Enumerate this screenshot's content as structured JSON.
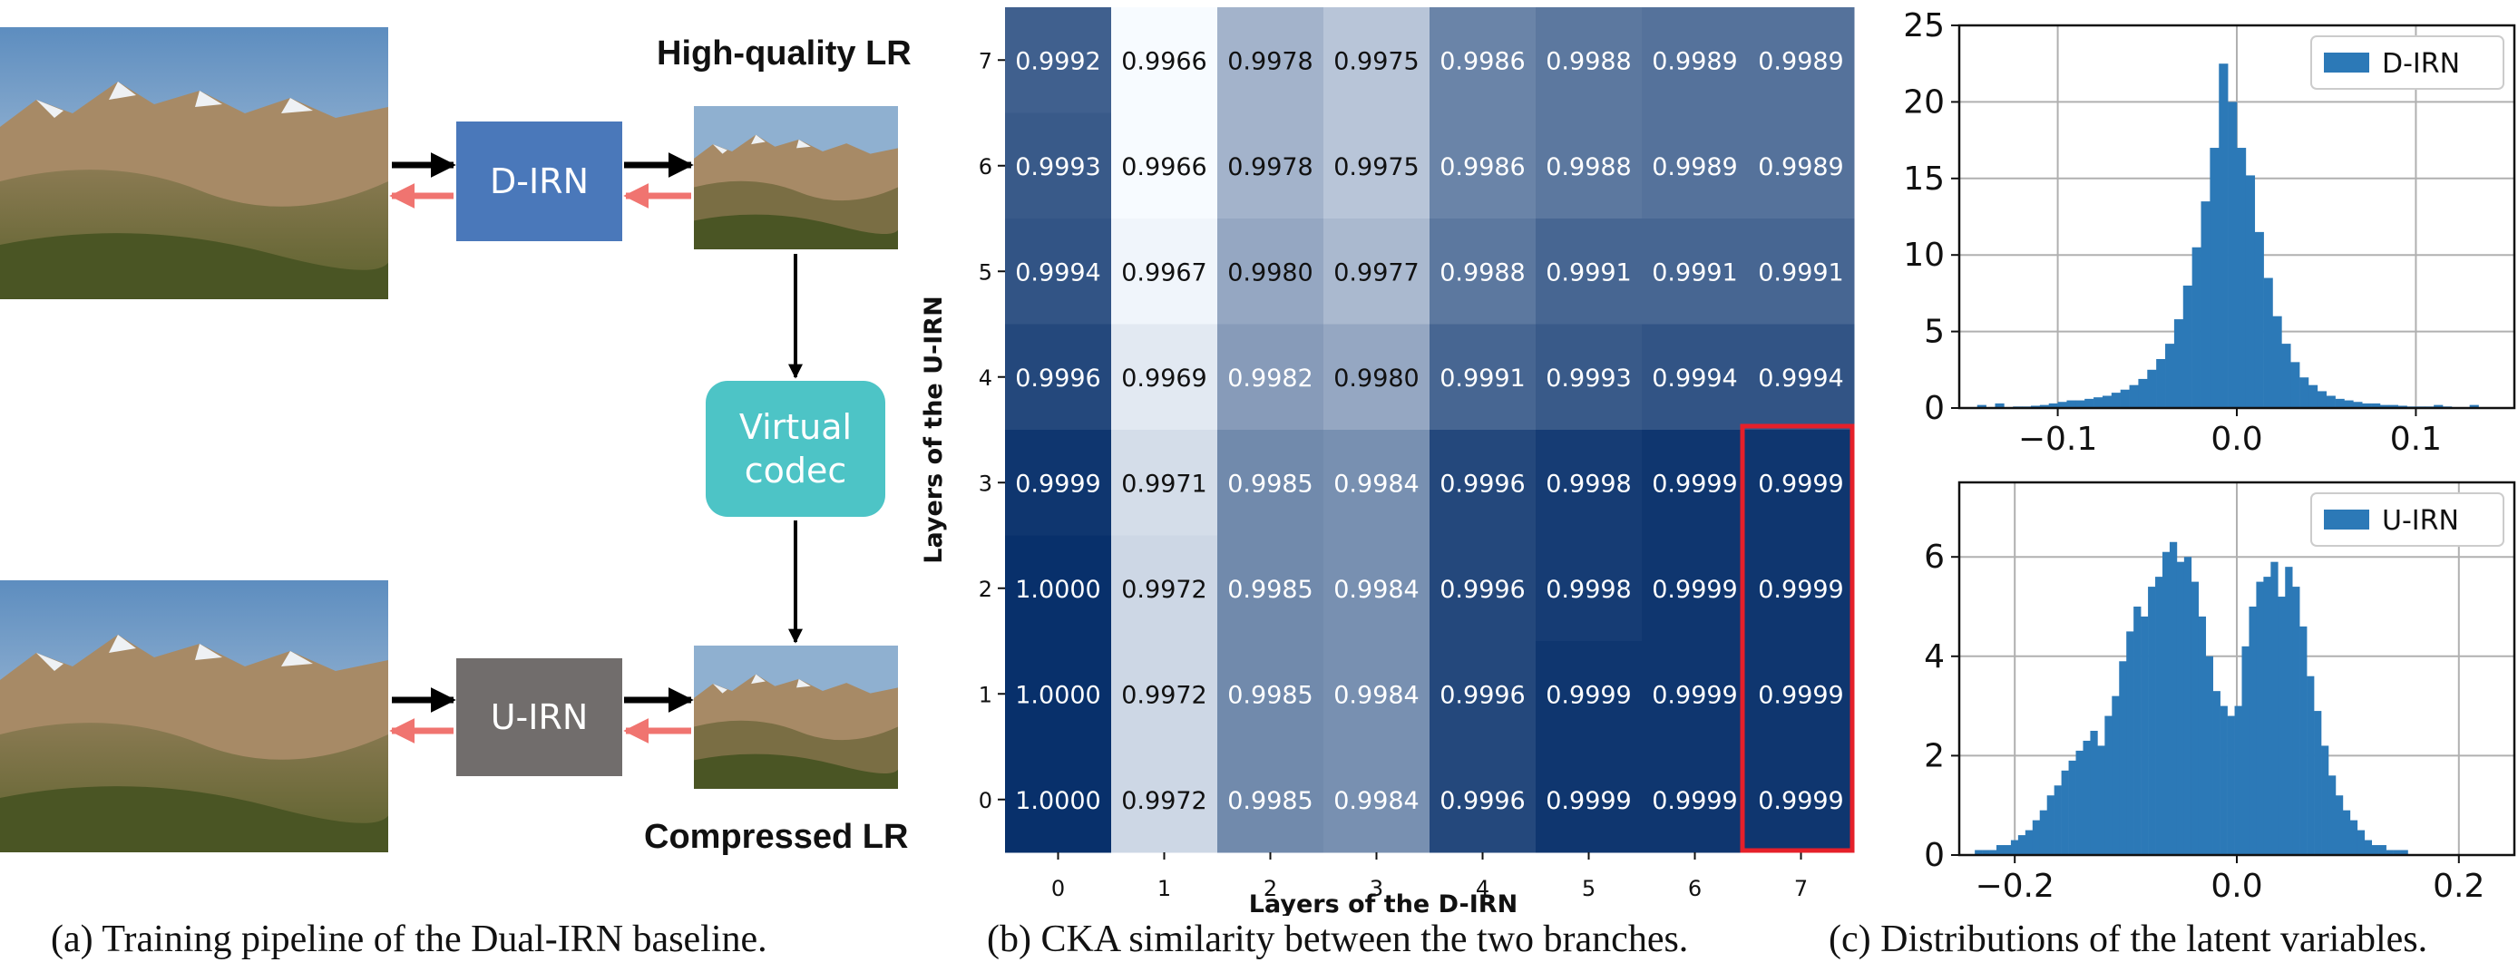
{
  "pipeline": {
    "high_quality_label": "High-quality LR",
    "compressed_label": "Compressed LR",
    "d_irn_label": "D-IRN",
    "u_irn_label": "U-IRN",
    "codec_label_line1": "Virtual",
    "codec_label_line2": "codec",
    "colors": {
      "d_irn_box": "#4a78ba",
      "u_irn_box": "#716d6c",
      "codec_box": "#4dc4c6",
      "forward_arrow": "#000000",
      "backward_arrow": "#f07470"
    }
  },
  "captions": {
    "a": "(a) Training pipeline of the Dual-IRN baseline.",
    "b": "(b) CKA similarity between the two branches.",
    "c": "(c) Distributions of the latent variables."
  },
  "chart_data": [
    {
      "type": "heatmap",
      "xlabel": "Layers of the D-IRN",
      "ylabel": "Layers of the U-IRN",
      "x_ticks": [
        "0",
        "1",
        "2",
        "3",
        "4",
        "5",
        "6",
        "7"
      ],
      "y_ticks": [
        "7",
        "6",
        "5",
        "4",
        "3",
        "2",
        "1",
        "0"
      ],
      "values": [
        [
          "0.9992",
          "0.9966",
          "0.9978",
          "0.9975",
          "0.9986",
          "0.9988",
          "0.9989",
          "0.9989"
        ],
        [
          "0.9993",
          "0.9966",
          "0.9978",
          "0.9975",
          "0.9986",
          "0.9988",
          "0.9989",
          "0.9989"
        ],
        [
          "0.9994",
          "0.9967",
          "0.9980",
          "0.9977",
          "0.9988",
          "0.9991",
          "0.9991",
          "0.9991"
        ],
        [
          "0.9996",
          "0.9969",
          "0.9982",
          "0.9980",
          "0.9991",
          "0.9993",
          "0.9994",
          "0.9994"
        ],
        [
          "0.9999",
          "0.9971",
          "0.9985",
          "0.9984",
          "0.9996",
          "0.9998",
          "0.9999",
          "0.9999"
        ],
        [
          "1.0000",
          "0.9972",
          "0.9985",
          "0.9984",
          "0.9996",
          "0.9998",
          "0.9999",
          "0.9999"
        ],
        [
          "1.0000",
          "0.9972",
          "0.9985",
          "0.9984",
          "0.9996",
          "0.9999",
          "0.9999",
          "0.9999"
        ],
        [
          "1.0000",
          "0.9972",
          "0.9985",
          "0.9984",
          "0.9996",
          "0.9999",
          "0.9999",
          "0.9999"
        ]
      ],
      "highlight": {
        "column": "7",
        "rows": [
          "3",
          "2",
          "1",
          "0"
        ],
        "color": "#e5202a"
      }
    },
    {
      "type": "bar",
      "subtype": "histogram",
      "legend": "D-IRN",
      "legend_position": "top-right",
      "grid": true,
      "color": "#2c79b7",
      "xlim": [
        -0.155,
        0.155
      ],
      "ylim": [
        0,
        25
      ],
      "x_ticks": [
        "−0.1",
        "0.0",
        "0.1"
      ],
      "x_tick_values": [
        -0.1,
        0.0,
        0.1
      ],
      "y_ticks": [
        "0",
        "5",
        "10",
        "15",
        "20",
        "25"
      ],
      "y_tick_values": [
        0,
        5,
        10,
        15,
        20,
        25
      ],
      "bin_start": -0.145,
      "bin_width": 0.005,
      "values": [
        0.2,
        0.05,
        0.3,
        0.05,
        0.1,
        0.1,
        0.15,
        0.2,
        0.3,
        0.4,
        0.5,
        0.5,
        0.6,
        0.7,
        0.8,
        1.0,
        1.2,
        1.5,
        1.9,
        2.5,
        3.2,
        4.2,
        5.8,
        8.0,
        10.5,
        13.5,
        17.0,
        22.5,
        20.0,
        17.0,
        15.2,
        11.5,
        8.5,
        6.0,
        4.2,
        3.0,
        2.0,
        1.5,
        1.1,
        0.8,
        0.6,
        0.5,
        0.4,
        0.3,
        0.3,
        0.2,
        0.2,
        0.15,
        0.1,
        0.1,
        0.1,
        0.2,
        0.1,
        0.05,
        0.05,
        0.2
      ]
    },
    {
      "type": "bar",
      "subtype": "histogram",
      "legend": "U-IRN",
      "legend_position": "top-right",
      "grid": true,
      "color": "#2c79b7",
      "xlim": [
        -0.25,
        0.25
      ],
      "ylim": [
        0,
        7.5
      ],
      "x_ticks": [
        "−0.2",
        "0.0",
        "0.2"
      ],
      "x_tick_values": [
        -0.2,
        0.0,
        0.2
      ],
      "y_ticks": [
        "0",
        "2",
        "4",
        "6"
      ],
      "y_tick_values": [
        0,
        2,
        4,
        6
      ],
      "bin_start": -0.236,
      "bin_width": 0.0065,
      "values": [
        0.1,
        0.1,
        0.1,
        0.2,
        0.2,
        0.3,
        0.4,
        0.5,
        0.7,
        0.9,
        1.2,
        1.4,
        1.7,
        1.9,
        2.1,
        2.3,
        2.5,
        2.2,
        2.8,
        3.2,
        3.9,
        4.5,
        5.0,
        4.8,
        5.4,
        5.6,
        6.1,
        6.3,
        5.9,
        6.0,
        5.5,
        4.8,
        4.0,
        3.3,
        3.0,
        2.8,
        3.0,
        4.2,
        5.0,
        5.5,
        5.6,
        5.9,
        5.2,
        5.8,
        5.4,
        4.6,
        3.6,
        2.9,
        2.2,
        1.6,
        1.2,
        0.9,
        0.7,
        0.5,
        0.3,
        0.2,
        0.2,
        0.1,
        0.1,
        0.1
      ]
    }
  ]
}
